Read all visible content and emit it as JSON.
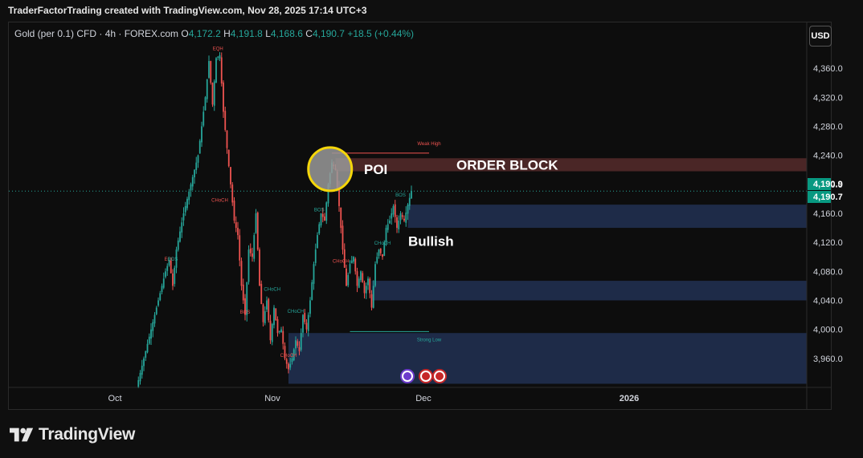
{
  "header": {
    "attribution": "TraderFactorTrading created with TradingView.com, Nov 28, 2025 17:14 UTC+3"
  },
  "legend": {
    "symbol": "Gold (per 0.1) CFD · 4h · FOREX.com",
    "o_label": "O",
    "o_value": "4,172.2",
    "h_label": "H",
    "h_value": "4,191.8",
    "l_label": "L",
    "l_value": "4,168.6",
    "c_label": "C",
    "c_value": "4,190.7",
    "change": "+18.5 (+0.44%)"
  },
  "currency_button": "USD",
  "brand": "TradingView",
  "colors": {
    "up": "#26a69a",
    "down": "#ef5350",
    "zone_blue": "#1e2b48",
    "zone_red": "#4a2626",
    "poi_circle": "#f5d60a",
    "price_tag": "#089981"
  },
  "chart_data": {
    "type": "candlestick",
    "ylim": [
      3920,
      4390
    ],
    "y_ticks": [
      3960,
      4000,
      4040,
      4080,
      4120,
      4160,
      4200,
      4240,
      4280,
      4320,
      4360
    ],
    "y_tick_labels": [
      "3,960.0",
      "4,000.0",
      "4,040.0",
      "4,080.0",
      "4,120.0",
      "4,160.0",
      "4,200.0",
      "4,240.0",
      "4,280.0",
      "4,320.0",
      "4,360.0"
    ],
    "x_tick_labels": [
      "Oct",
      "Nov",
      "Dec",
      "2026"
    ],
    "last_price_tags": [
      "4,190.9",
      "4,190.7"
    ],
    "last_price": 4190.7,
    "price_path": [
      [
        0,
        3920
      ],
      [
        4,
        3960
      ],
      [
        8,
        4000
      ],
      [
        12,
        4040
      ],
      [
        16,
        4080
      ],
      [
        18,
        4095
      ],
      [
        20,
        4060
      ],
      [
        22,
        4110
      ],
      [
        26,
        4160
      ],
      [
        30,
        4200
      ],
      [
        34,
        4240
      ],
      [
        36,
        4280
      ],
      [
        38,
        4320
      ],
      [
        40,
        4370
      ],
      [
        42,
        4310
      ],
      [
        44,
        4374
      ],
      [
        46,
        4378
      ],
      [
        48,
        4300
      ],
      [
        50,
        4250
      ],
      [
        52,
        4200
      ],
      [
        54,
        4150
      ],
      [
        56,
        4130
      ],
      [
        58,
        4060
      ],
      [
        60,
        4020
      ],
      [
        62,
        4110
      ],
      [
        64,
        4100
      ],
      [
        66,
        4160
      ],
      [
        68,
        4060
      ],
      [
        70,
        4010
      ],
      [
        72,
        4040
      ],
      [
        74,
        3985
      ],
      [
        76,
        4030
      ],
      [
        78,
        3995
      ],
      [
        80,
        4000
      ],
      [
        82,
        3960
      ],
      [
        84,
        3945
      ],
      [
        86,
        3960
      ],
      [
        88,
        3985
      ],
      [
        90,
        3970
      ],
      [
        92,
        4020
      ],
      [
        94,
        4000
      ],
      [
        96,
        4040
      ],
      [
        98,
        4090
      ],
      [
        100,
        4130
      ],
      [
        102,
        4160
      ],
      [
        104,
        4150
      ],
      [
        106,
        4200
      ],
      [
        108,
        4230
      ],
      [
        110,
        4220
      ],
      [
        112,
        4170
      ],
      [
        114,
        4110
      ],
      [
        116,
        4060
      ],
      [
        118,
        4090
      ],
      [
        120,
        4100
      ],
      [
        122,
        4060
      ],
      [
        124,
        4080
      ],
      [
        126,
        4050
      ],
      [
        128,
        4070
      ],
      [
        130,
        4030
      ],
      [
        132,
        4090
      ],
      [
        134,
        4110
      ],
      [
        136,
        4100
      ],
      [
        138,
        4140
      ],
      [
        140,
        4150
      ],
      [
        142,
        4170
      ],
      [
        144,
        4140
      ],
      [
        146,
        4160
      ],
      [
        148,
        4150
      ],
      [
        150,
        4172
      ],
      [
        152,
        4190.7
      ]
    ],
    "zones": [
      {
        "kind": "order-block",
        "from": 4218,
        "to": 4236,
        "start_index": 110
      },
      {
        "kind": "demand",
        "from": 4140,
        "to": 4172,
        "start_index": 150
      },
      {
        "kind": "demand",
        "from": 4040,
        "to": 4067,
        "start_index": 130
      },
      {
        "kind": "demand",
        "from": 3925,
        "to": 3995,
        "start_index": 84
      }
    ],
    "levels": [
      {
        "label": "Weak High",
        "price": 4243
      },
      {
        "label": "Strong Low",
        "price": 3997
      }
    ],
    "annotations": {
      "poi": "POI",
      "order_block": "ORDER BLOCK",
      "bullish": "Bullish",
      "eqh": "EQH",
      "markers": [
        {
          "text": "EQH",
          "price": 4385,
          "index": 45,
          "color": "#ef5350"
        },
        {
          "text": "CHoCH",
          "price": 4176,
          "index": 46,
          "color": "#ef5350"
        },
        {
          "text": "EQL",
          "price": 4095,
          "index": 18,
          "color": "#ef5350"
        },
        {
          "text": "BOS",
          "price": 4095,
          "index": 20,
          "color": "#26a69a"
        },
        {
          "text": "BOS",
          "price": 4022,
          "index": 60,
          "color": "#ef5350"
        },
        {
          "text": "CHoCH",
          "price": 4053,
          "index": 75,
          "color": "#26a69a"
        },
        {
          "text": "CHoCH",
          "price": 4023,
          "index": 88,
          "color": "#26a69a"
        },
        {
          "text": "CHoCH",
          "price": 3962,
          "index": 84,
          "color": "#ef5350"
        },
        {
          "text": "BOS",
          "price": 4163,
          "index": 101,
          "color": "#26a69a"
        },
        {
          "text": "CHoCH",
          "price": 4092,
          "index": 113,
          "color": "#ef5350"
        },
        {
          "text": "CHoCH",
          "price": 4117,
          "index": 136,
          "color": "#26a69a"
        },
        {
          "text": "BOS",
          "price": 4183,
          "index": 146,
          "color": "#26a69a"
        }
      ]
    },
    "grid": false,
    "legend_position": "top-left"
  }
}
